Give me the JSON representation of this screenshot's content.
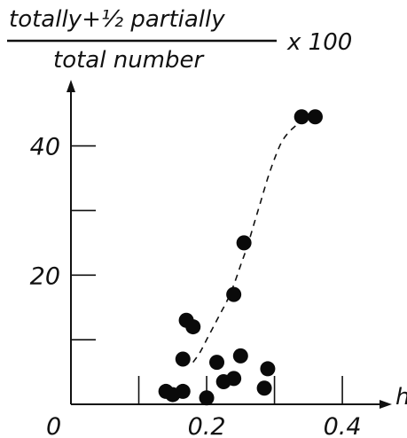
{
  "chart_data": {
    "type": "scatter",
    "ylabel": {
      "numerator": "totally+½ partially",
      "denominator": "total number",
      "multiplier": "x 100"
    },
    "xlabel": "h",
    "origin_label": "0",
    "xlim": [
      0,
      0.46
    ],
    "ylim": [
      0,
      49
    ],
    "x_ticks": [
      0.1,
      0.2,
      0.3,
      0.4
    ],
    "x_tick_labels": [
      "0.2",
      "0.4"
    ],
    "x_tick_label_values": [
      0.2,
      0.4
    ],
    "y_ticks": [
      10,
      20,
      30,
      40
    ],
    "y_tick_labels": [
      "20",
      "40"
    ],
    "y_tick_label_values": [
      20,
      40
    ],
    "grid": false,
    "points": [
      {
        "x": 0.14,
        "y": 2
      },
      {
        "x": 0.15,
        "y": 1.5
      },
      {
        "x": 0.165,
        "y": 2
      },
      {
        "x": 0.165,
        "y": 7
      },
      {
        "x": 0.17,
        "y": 13
      },
      {
        "x": 0.18,
        "y": 12
      },
      {
        "x": 0.2,
        "y": 1
      },
      {
        "x": 0.215,
        "y": 6.5
      },
      {
        "x": 0.225,
        "y": 3.5
      },
      {
        "x": 0.24,
        "y": 4
      },
      {
        "x": 0.24,
        "y": 17
      },
      {
        "x": 0.25,
        "y": 7.5
      },
      {
        "x": 0.255,
        "y": 25
      },
      {
        "x": 0.285,
        "y": 2.5
      },
      {
        "x": 0.29,
        "y": 5.5
      },
      {
        "x": 0.34,
        "y": 44.5
      },
      {
        "x": 0.36,
        "y": 44.5
      }
    ],
    "fit_curve": {
      "style": "dashed",
      "x": [
        0.18,
        0.19,
        0.2,
        0.21,
        0.22,
        0.23,
        0.24,
        0.25,
        0.26,
        0.27,
        0.28,
        0.29,
        0.3,
        0.31,
        0.32,
        0.33,
        0.34,
        0.35,
        0.36
      ],
      "y": [
        6.5,
        8.0,
        10.0,
        12.0,
        14.0,
        16.0,
        18.5,
        21.5,
        24.5,
        28.0,
        31.5,
        35.0,
        38.0,
        40.5,
        42.0,
        43.0,
        43.8,
        44.3,
        44.6
      ]
    }
  }
}
